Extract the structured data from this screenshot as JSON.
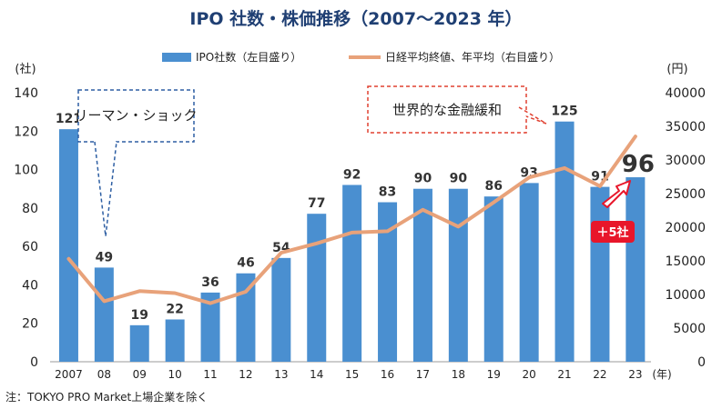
{
  "colors": {
    "title": "#1f3f73",
    "bar": "#4a8fd0",
    "line": "#e8a27a",
    "callout_left": "#2e5fa3",
    "callout_right": "#e04030",
    "badge": "#e8162a",
    "arrow": "#e8162a"
  },
  "chart_data": {
    "type": "bar",
    "title": "IPO 社数・株価推移（2007～2023 年）",
    "categories": [
      "2007",
      "08",
      "09",
      "10",
      "11",
      "12",
      "13",
      "14",
      "15",
      "16",
      "17",
      "18",
      "19",
      "20",
      "21",
      "22",
      "23"
    ],
    "x_unit": "(年)",
    "series": [
      {
        "name": "IPO社数（左目盛り）",
        "type": "bar",
        "axis": "left",
        "values": [
          121,
          49,
          19,
          22,
          36,
          46,
          54,
          77,
          92,
          83,
          90,
          90,
          86,
          93,
          125,
          91,
          96
        ]
      },
      {
        "name": "日経平均終値、年平均（右目盛り）",
        "type": "line",
        "axis": "right",
        "values": [
          15300,
          9000,
          10500,
          10200,
          8700,
          10400,
          16200,
          17600,
          19200,
          19400,
          22600,
          20100,
          23700,
          27400,
          28800,
          26100,
          33500
        ]
      }
    ],
    "y_left": {
      "unit": "(社)",
      "min": 0,
      "max": 140,
      "ticks": [
        0,
        20,
        40,
        60,
        80,
        100,
        120,
        140
      ]
    },
    "y_right": {
      "unit": "(円)",
      "min": 0,
      "max": 40000,
      "ticks": [
        0,
        5000,
        10000,
        15000,
        20000,
        25000,
        30000,
        35000,
        40000
      ]
    },
    "legend_position": "top",
    "grid": false,
    "annotations": [
      {
        "text": "リーマン・ショック",
        "target": "08"
      },
      {
        "text": "世界的な金融緩和",
        "target": "21"
      },
      {
        "text": "＋5社",
        "target": "23"
      }
    ],
    "note": "注：TOKYO PRO Market上場企業を除く"
  }
}
